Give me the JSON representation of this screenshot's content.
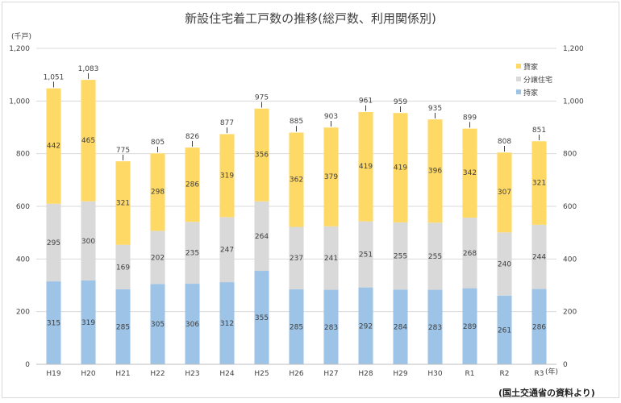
{
  "chart_data": {
    "type": "bar",
    "stacked": true,
    "title": "新設住宅着工戸数の推移(総戸数、利用関係別)",
    "unit_label": "(千戸)",
    "x_unit_label": "(年)",
    "source": "(国土交通省の資料より)",
    "categories": [
      "H19",
      "H20",
      "H21",
      "H22",
      "H23",
      "H24",
      "H25",
      "H26",
      "H27",
      "H28",
      "H29",
      "H30",
      "R1",
      "R2",
      "R3"
    ],
    "series": [
      {
        "name": "持家",
        "color": "#9dc3e6",
        "values": [
          315,
          319,
          285,
          305,
          306,
          312,
          355,
          285,
          283,
          292,
          284,
          283,
          289,
          261,
          286
        ]
      },
      {
        "name": "分譲住宅",
        "color": "#d9d9d9",
        "values": [
          295,
          300,
          169,
          202,
          235,
          247,
          264,
          237,
          241,
          251,
          255,
          255,
          268,
          240,
          244
        ]
      },
      {
        "name": "貸家",
        "color": "#ffd966",
        "values": [
          442,
          465,
          321,
          298,
          286,
          319,
          356,
          362,
          379,
          419,
          419,
          396,
          342,
          307,
          321
        ]
      }
    ],
    "totals": [
      1051,
      1083,
      775,
      805,
      826,
      877,
      975,
      885,
      903,
      961,
      959,
      935,
      899,
      808,
      851
    ],
    "ylim": [
      0,
      1200
    ],
    "yticks": [
      0,
      200,
      400,
      600,
      800,
      1000,
      1200
    ],
    "ytick_labels": [
      "0",
      "200",
      "400",
      "600",
      "800",
      "1,000",
      "1,200"
    ],
    "total_labels": [
      "1,051",
      "1,083",
      "775",
      "805",
      "826",
      "877",
      "975",
      "885",
      "903",
      "961",
      "959",
      "935",
      "899",
      "808",
      "851"
    ],
    "grid": true,
    "legend_position": "right",
    "legend_order": [
      "貸家",
      "分譲住宅",
      "持家"
    ],
    "dual_y_axis": true
  }
}
